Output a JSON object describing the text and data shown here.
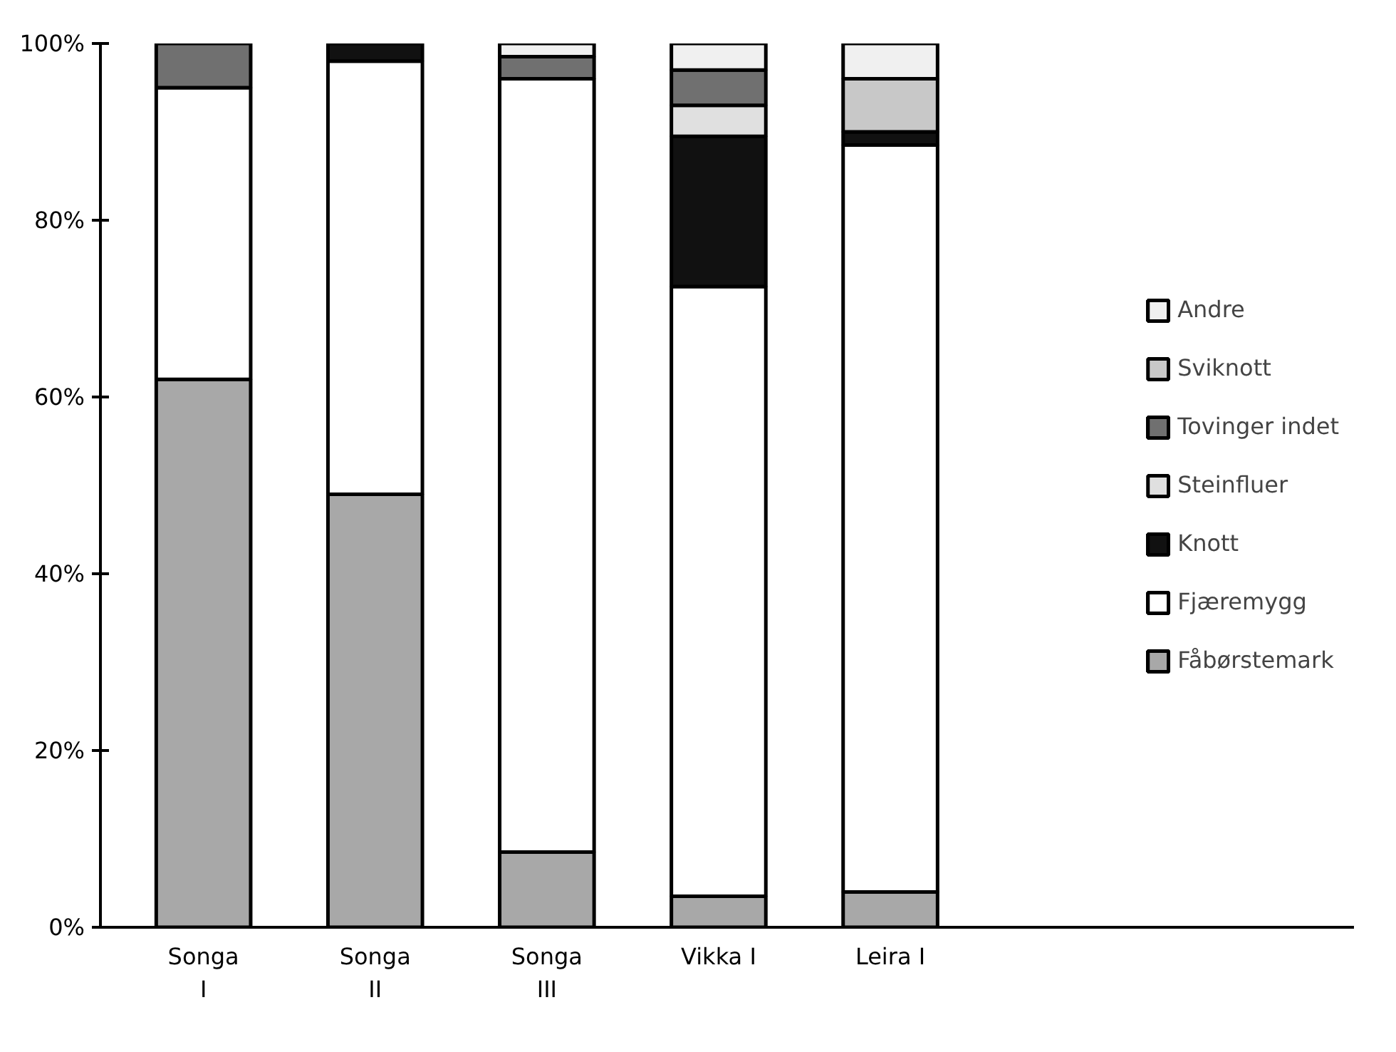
{
  "chart_data": {
    "type": "bar",
    "stacked": true,
    "categories": [
      "Songa\nI",
      "Songa\nII",
      "Songa\nIII",
      "Vikka I",
      "Leira I"
    ],
    "series": [
      {
        "name": "Fåbørstemark",
        "color": "#a8a8a8",
        "values": [
          62,
          49,
          8.5,
          3.5,
          4
        ]
      },
      {
        "name": "Fjæremygg",
        "color": "#ffffff",
        "values": [
          33,
          49,
          87.5,
          69,
          84.5
        ]
      },
      {
        "name": "Knott",
        "color": "#111111",
        "values": [
          0,
          2,
          0,
          17,
          1.5
        ]
      },
      {
        "name": "Steinfluer",
        "color": "#e0e0e0",
        "values": [
          0,
          0,
          0,
          3.5,
          0
        ]
      },
      {
        "name": "Tovinger indet",
        "color": "#707070",
        "values": [
          5,
          0,
          2.5,
          4,
          0
        ]
      },
      {
        "name": "Sviknott",
        "color": "#c8c8c8",
        "values": [
          0,
          0,
          0,
          0,
          6
        ]
      },
      {
        "name": "Andre",
        "color": "#f0f0f0",
        "values": [
          0,
          0,
          1.5,
          3,
          4
        ]
      }
    ],
    "ylim": [
      0,
      100
    ],
    "yticks": [
      {
        "value": 0,
        "label": "0%"
      },
      {
        "value": 20,
        "label": "20%"
      },
      {
        "value": 40,
        "label": "40%"
      },
      {
        "value": 60,
        "label": "60%"
      },
      {
        "value": 80,
        "label": "80%"
      },
      {
        "value": 100,
        "label": "100%"
      }
    ],
    "legend": "right",
    "grid": false
  }
}
